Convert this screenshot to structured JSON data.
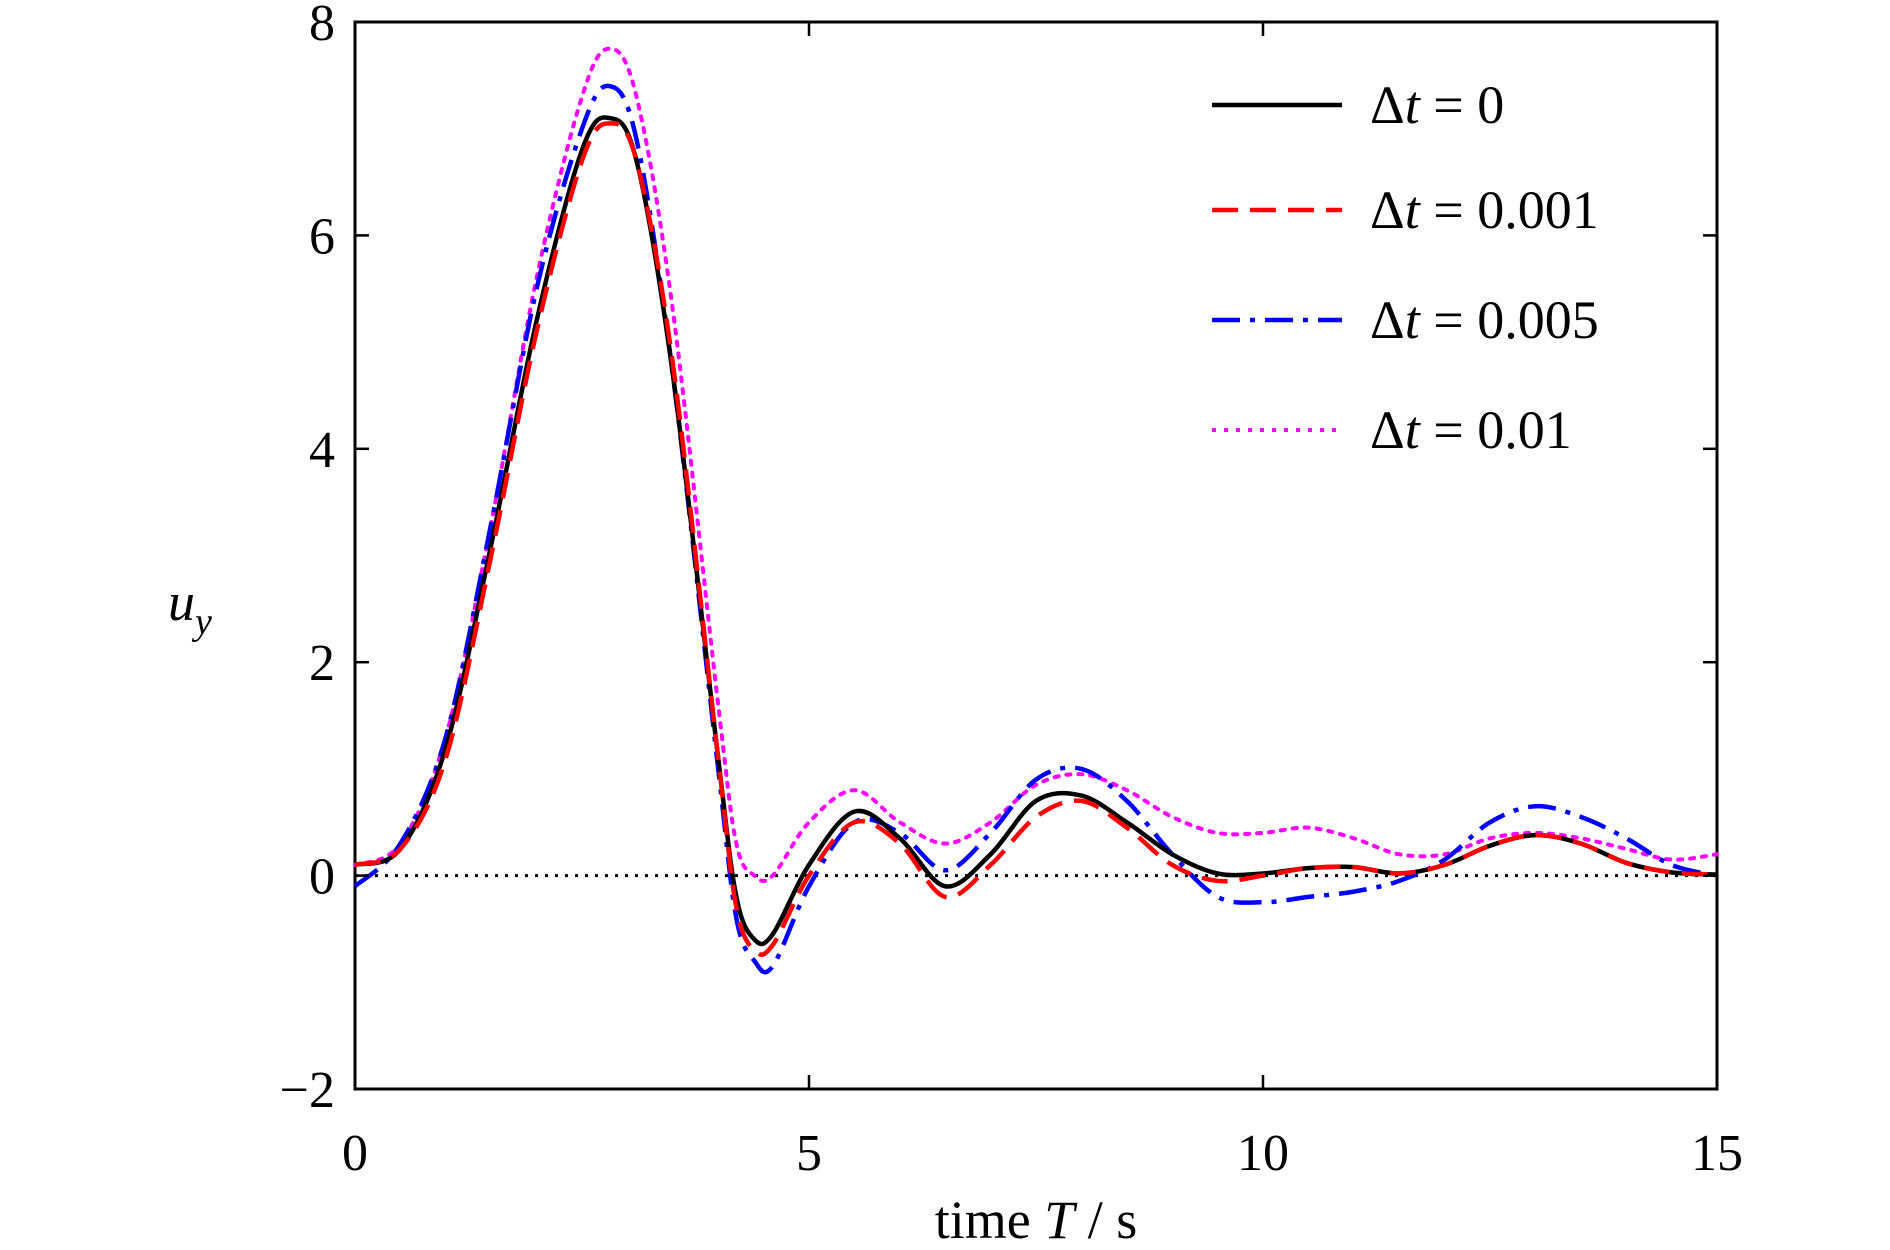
{
  "chart_data": {
    "type": "line",
    "xlabel_prefix": "time ",
    "xlabel_var": "T",
    "xlabel_suffix": " / s",
    "ylabel_var": "u",
    "ylabel_sub": "y",
    "xlim": [
      0,
      15
    ],
    "ylim": [
      -2,
      8
    ],
    "xticks": [
      0,
      5,
      10,
      15
    ],
    "yticks": [
      -2,
      0,
      2,
      4,
      6,
      8
    ],
    "xtick_labels": [
      "0",
      "5",
      "10",
      "15"
    ],
    "ytick_labels": [
      "−2",
      "0",
      "2",
      "4",
      "6",
      "8"
    ],
    "grid": false,
    "legend_position": "top-right",
    "reference_line": {
      "y": 0,
      "style": "dotted",
      "color": "#000000"
    },
    "series": [
      {
        "name": "Δt = 0",
        "legend_prefix": "Δ",
        "legend_var": "t",
        "legend_value": " = 0",
        "color": "#000000",
        "style": "solid",
        "x": [
          0,
          0.5,
          1,
          1.5,
          2,
          2.5,
          2.8,
          3.1,
          3.5,
          4,
          4.2,
          4.4,
          4.6,
          5,
          5.5,
          6,
          6.5,
          7,
          7.5,
          8,
          8.5,
          9,
          9.5,
          10,
          10.5,
          11,
          11.5,
          12,
          12.5,
          13,
          13.5,
          14,
          14.5,
          15
        ],
        "y": [
          0.1,
          0.25,
          1.2,
          3.1,
          5.2,
          6.8,
          7.1,
          6.7,
          4.7,
          1.1,
          -0.2,
          -0.6,
          -0.55,
          0.1,
          0.6,
          0.35,
          -0.1,
          0.2,
          0.7,
          0.75,
          0.5,
          0.2,
          0.02,
          0.02,
          0.07,
          0.08,
          0.02,
          0.1,
          0.28,
          0.38,
          0.3,
          0.12,
          0.03,
          0.01
        ]
      },
      {
        "name": "Δt = 0.001",
        "legend_prefix": "Δ",
        "legend_var": "t",
        "legend_value": " = 0.001",
        "color": "#ff0000",
        "style": "dashed",
        "x": [
          0,
          0.5,
          1,
          1.5,
          2,
          2.5,
          2.8,
          3.1,
          3.5,
          4,
          4.2,
          4.4,
          4.6,
          5,
          5.5,
          6,
          6.5,
          7,
          7.5,
          8,
          8.5,
          9,
          9.5,
          10,
          10.5,
          11,
          11.5,
          12,
          12.5,
          13,
          13.5,
          14,
          14.5,
          15
        ],
        "y": [
          0.1,
          0.25,
          1.1,
          3.0,
          5.1,
          6.7,
          7.05,
          6.7,
          4.8,
          1.1,
          -0.3,
          -0.7,
          -0.65,
          0.0,
          0.5,
          0.3,
          -0.2,
          0.1,
          0.55,
          0.7,
          0.45,
          0.1,
          -0.05,
          0.0,
          0.07,
          0.08,
          0.02,
          0.1,
          0.28,
          0.38,
          0.3,
          0.12,
          0.03,
          0.01
        ]
      },
      {
        "name": "Δt = 0.005",
        "legend_prefix": "Δ",
        "legend_var": "t",
        "legend_value": " = 0.005",
        "color": "#0000ff",
        "style": "dashdot",
        "x": [
          0,
          0.5,
          1,
          1.5,
          2,
          2.5,
          2.8,
          3.1,
          3.5,
          4,
          4.2,
          4.4,
          4.6,
          5,
          5.5,
          6,
          6.5,
          7,
          7.5,
          8,
          8.5,
          9,
          9.5,
          10,
          10.5,
          11,
          11.5,
          12,
          12.5,
          13,
          13.5,
          14,
          14.5,
          15
        ],
        "y": [
          -0.1,
          0.3,
          1.3,
          3.3,
          5.5,
          7.0,
          7.4,
          6.9,
          4.7,
          1.0,
          -0.4,
          -0.8,
          -0.85,
          -0.1,
          0.5,
          0.4,
          0.05,
          0.4,
          0.9,
          1.0,
          0.7,
          0.2,
          -0.2,
          -0.25,
          -0.2,
          -0.15,
          -0.05,
          0.15,
          0.5,
          0.65,
          0.55,
          0.35,
          0.1,
          0.0
        ]
      },
      {
        "name": "Δt = 0.01",
        "legend_prefix": "Δ",
        "legend_var": "t",
        "legend_value": " = 0.01",
        "color": "#ff00ff",
        "style": "dotted",
        "x": [
          0,
          0.5,
          1,
          1.5,
          2,
          2.5,
          2.8,
          3.1,
          3.5,
          4,
          4.2,
          4.4,
          4.6,
          5,
          5.5,
          6,
          6.5,
          7,
          7.5,
          8,
          8.5,
          9,
          9.5,
          10,
          10.5,
          11,
          11.5,
          12,
          12.5,
          13,
          13.5,
          14,
          14.5,
          15
        ],
        "y": [
          0.1,
          0.3,
          1.3,
          3.3,
          5.6,
          7.3,
          7.75,
          7.3,
          5.3,
          1.6,
          0.3,
          0.0,
          0.0,
          0.5,
          0.8,
          0.5,
          0.3,
          0.5,
          0.85,
          0.95,
          0.8,
          0.55,
          0.4,
          0.4,
          0.45,
          0.35,
          0.2,
          0.2,
          0.35,
          0.4,
          0.35,
          0.25,
          0.15,
          0.2
        ]
      }
    ]
  }
}
